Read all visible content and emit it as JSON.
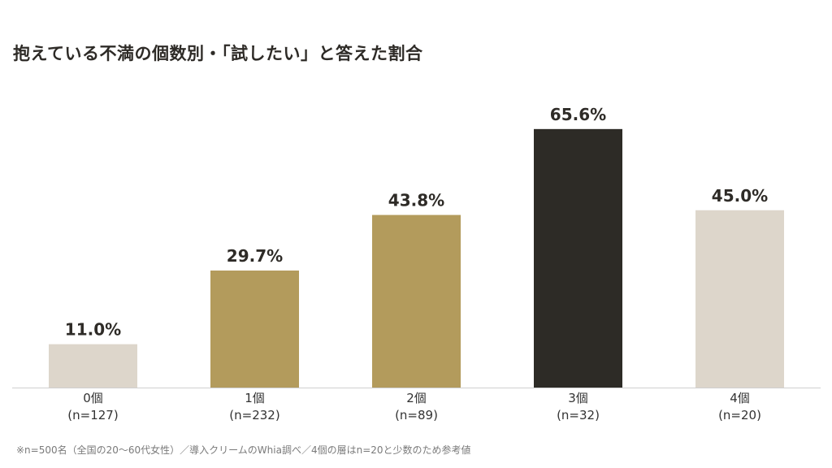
{
  "chart_data": {
    "type": "bar",
    "title": "抱えている不満の個数別・「試したい」と答えた割合",
    "categories": [
      "0個",
      "1個",
      "2個",
      "3個",
      "4個"
    ],
    "sublabels": [
      "(n=127)",
      "(n=232)",
      "(n=89)",
      "(n=32)",
      "(n=20)"
    ],
    "values": [
      11.0,
      29.7,
      43.8,
      65.6,
      45.0
    ],
    "value_labels": [
      "11.0%",
      "29.7%",
      "43.8%",
      "65.6%",
      "45.0%"
    ],
    "bar_colors": [
      "#ddd6cb",
      "#b39b5c",
      "#b39b5c",
      "#2d2b26",
      "#ddd6cb"
    ],
    "ylim": [
      0,
      100
    ],
    "xlabel": "",
    "ylabel": "",
    "grid": false,
    "footnote": "※n=500名（全国の20〜60代女性）／導入クリームのWhia調べ／4個の層はn=20と少数のため参考値"
  }
}
